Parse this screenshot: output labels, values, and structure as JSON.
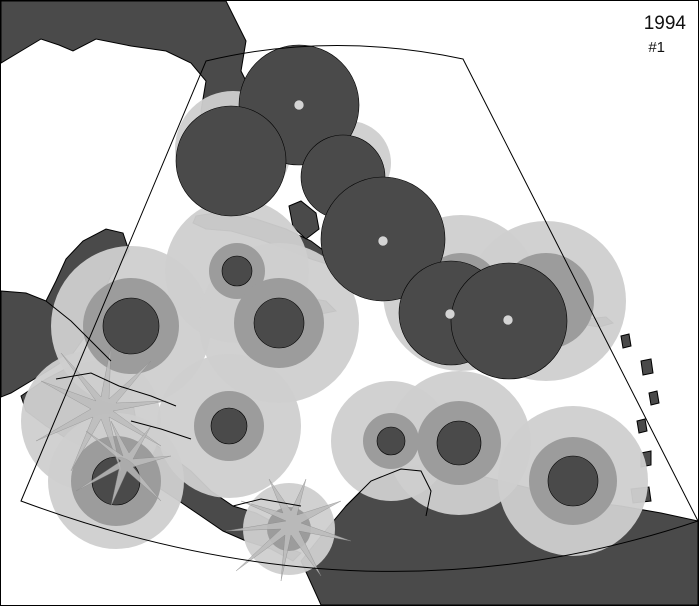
{
  "year": "1994",
  "map_number": "#1",
  "colors": {
    "land": "#4a4a4a",
    "coverage_outer": "#cfcfcf",
    "coverage_middle": "#9c9c9c",
    "coverage_inner": "#4a4a4a",
    "station_marker": "#d4d4d4",
    "outline": "#000000",
    "background": "#ffffff"
  },
  "legend": null
}
